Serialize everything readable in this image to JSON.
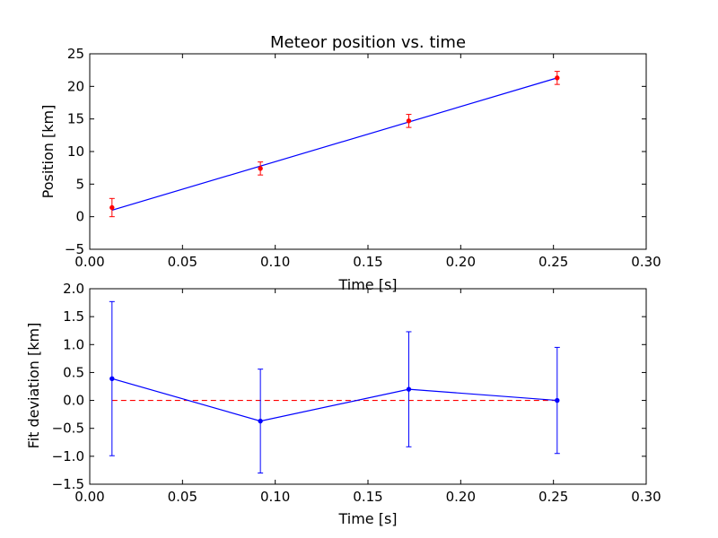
{
  "chart_data": [
    {
      "type": "line",
      "title": "Meteor position vs. time",
      "xlabel": "Time [s]",
      "ylabel": "Position [km]",
      "xlim": [
        0.0,
        0.3
      ],
      "ylim": [
        -5,
        25
      ],
      "xticks": [
        "0.00",
        "0.05",
        "0.10",
        "0.15",
        "0.20",
        "0.25",
        "0.30"
      ],
      "yticks": [
        "−5",
        "0",
        "5",
        "10",
        "15",
        "20",
        "25"
      ],
      "grid": false,
      "fit_line": {
        "color": "#0000ff",
        "x": [
          0.012,
          0.252
        ],
        "y": [
          1.0,
          21.3
        ]
      },
      "measurements": {
        "color": "#ff0000",
        "x": [
          0.012,
          0.092,
          0.172,
          0.252
        ],
        "y": [
          1.4,
          7.4,
          14.7,
          21.3
        ],
        "yerr": [
          1.4,
          1.0,
          1.0,
          1.0
        ]
      }
    },
    {
      "type": "line",
      "title": "",
      "xlabel": "Time [s]",
      "ylabel": "Fit deviation [km]",
      "xlim": [
        0.0,
        0.3
      ],
      "ylim": [
        -1.5,
        2.0
      ],
      "xticks": [
        "0.00",
        "0.05",
        "0.10",
        "0.15",
        "0.20",
        "0.25",
        "0.30"
      ],
      "yticks": [
        "−1.5",
        "−1.0",
        "−0.5",
        "0.0",
        "0.5",
        "1.0",
        "1.5",
        "2.0"
      ],
      "grid": false,
      "deviations": {
        "color": "#0000ff",
        "x": [
          0.012,
          0.092,
          0.172,
          0.252
        ],
        "y": [
          0.39,
          -0.37,
          0.2,
          0.0
        ],
        "yerr": [
          1.38,
          0.93,
          1.03,
          0.95
        ]
      },
      "zero_line": {
        "color": "#ff0000",
        "style": "dashed",
        "x": [
          0.012,
          0.252
        ],
        "y": [
          0.0,
          0.0
        ]
      }
    }
  ]
}
